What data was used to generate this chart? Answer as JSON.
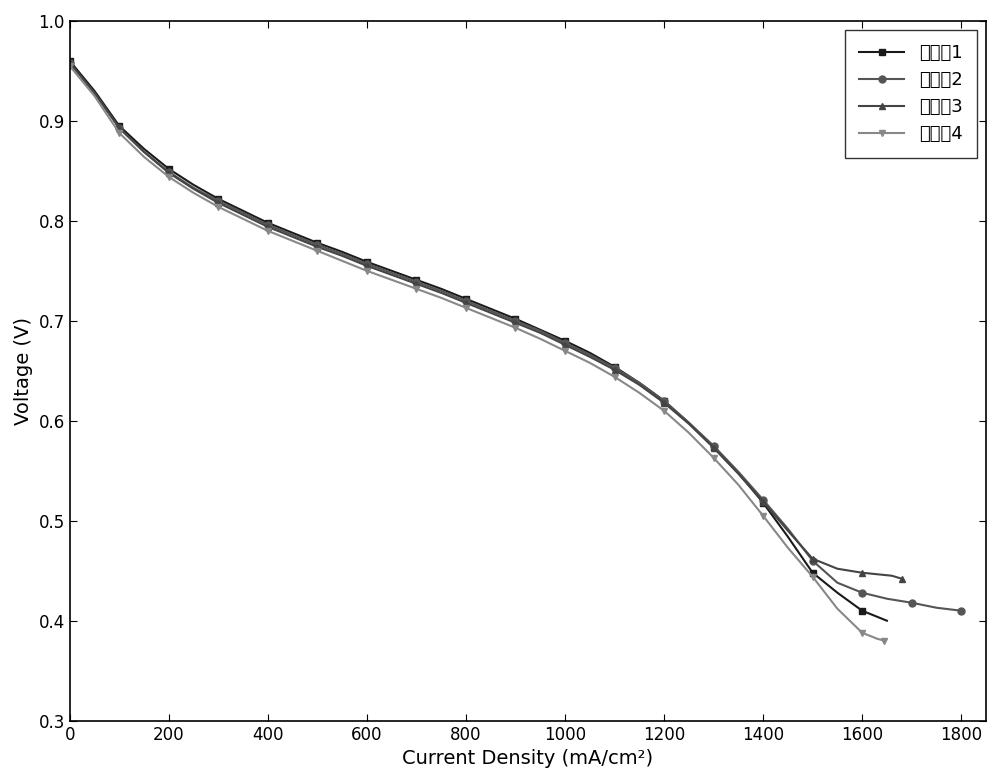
{
  "title": "",
  "xlabel": "Current Density (mA/cm²)",
  "ylabel": "Voltage (V)",
  "xlim": [
    0,
    1850
  ],
  "ylim": [
    0.3,
    1.0
  ],
  "xticks": [
    0,
    200,
    400,
    600,
    800,
    1000,
    1200,
    1400,
    1600,
    1800
  ],
  "yticks": [
    0.3,
    0.4,
    0.5,
    0.6,
    0.7,
    0.8,
    0.9,
    1.0
  ],
  "series": [
    {
      "label": "实施例1",
      "color": "#1a1a1a",
      "marker": "s",
      "markersize": 5,
      "linewidth": 1.5,
      "markevery": 2,
      "x": [
        0,
        50,
        100,
        150,
        200,
        250,
        300,
        350,
        400,
        450,
        500,
        550,
        600,
        650,
        700,
        750,
        800,
        850,
        900,
        950,
        1000,
        1050,
        1100,
        1150,
        1200,
        1250,
        1300,
        1350,
        1400,
        1450,
        1500,
        1550,
        1600,
        1650
      ],
      "y": [
        0.96,
        0.93,
        0.895,
        0.872,
        0.852,
        0.836,
        0.822,
        0.81,
        0.798,
        0.788,
        0.778,
        0.769,
        0.759,
        0.75,
        0.741,
        0.732,
        0.722,
        0.712,
        0.702,
        0.691,
        0.68,
        0.668,
        0.654,
        0.638,
        0.62,
        0.598,
        0.574,
        0.548,
        0.518,
        0.484,
        0.448,
        0.428,
        0.41,
        0.4
      ]
    },
    {
      "label": "实施例2",
      "color": "#555555",
      "marker": "o",
      "markersize": 5,
      "linewidth": 1.5,
      "markevery": 2,
      "x": [
        0,
        50,
        100,
        150,
        200,
        250,
        300,
        350,
        400,
        450,
        500,
        550,
        600,
        650,
        700,
        750,
        800,
        850,
        900,
        950,
        1000,
        1050,
        1100,
        1150,
        1200,
        1250,
        1300,
        1350,
        1400,
        1450,
        1500,
        1550,
        1600,
        1650,
        1700,
        1750,
        1800
      ],
      "y": [
        0.958,
        0.928,
        0.893,
        0.869,
        0.849,
        0.833,
        0.82,
        0.808,
        0.796,
        0.786,
        0.776,
        0.767,
        0.757,
        0.748,
        0.739,
        0.73,
        0.72,
        0.71,
        0.7,
        0.69,
        0.678,
        0.666,
        0.653,
        0.638,
        0.62,
        0.598,
        0.575,
        0.549,
        0.521,
        0.492,
        0.46,
        0.438,
        0.428,
        0.422,
        0.418,
        0.413,
        0.41
      ]
    },
    {
      "label": "实施例3",
      "color": "#444444",
      "marker": "^",
      "markersize": 5,
      "linewidth": 1.5,
      "markevery": 2,
      "x": [
        0,
        50,
        100,
        150,
        200,
        250,
        300,
        350,
        400,
        450,
        500,
        550,
        600,
        650,
        700,
        750,
        800,
        850,
        900,
        950,
        1000,
        1050,
        1100,
        1150,
        1200,
        1250,
        1300,
        1350,
        1400,
        1450,
        1500,
        1550,
        1600,
        1660,
        1680
      ],
      "y": [
        0.958,
        0.928,
        0.893,
        0.869,
        0.848,
        0.832,
        0.818,
        0.806,
        0.794,
        0.784,
        0.774,
        0.765,
        0.755,
        0.746,
        0.737,
        0.728,
        0.718,
        0.708,
        0.698,
        0.688,
        0.676,
        0.664,
        0.651,
        0.636,
        0.618,
        0.597,
        0.573,
        0.547,
        0.519,
        0.49,
        0.462,
        0.452,
        0.448,
        0.445,
        0.442
      ]
    },
    {
      "label": "实施例4",
      "color": "#888888",
      "marker": "v",
      "markersize": 5,
      "linewidth": 1.5,
      "markevery": 2,
      "x": [
        0,
        50,
        100,
        150,
        200,
        250,
        300,
        350,
        400,
        450,
        500,
        550,
        600,
        650,
        700,
        750,
        800,
        850,
        900,
        950,
        1000,
        1050,
        1100,
        1150,
        1200,
        1250,
        1300,
        1350,
        1400,
        1450,
        1500,
        1550,
        1600,
        1630,
        1645
      ],
      "y": [
        0.955,
        0.925,
        0.888,
        0.864,
        0.844,
        0.828,
        0.814,
        0.802,
        0.79,
        0.78,
        0.77,
        0.76,
        0.75,
        0.741,
        0.732,
        0.723,
        0.713,
        0.703,
        0.693,
        0.682,
        0.67,
        0.658,
        0.644,
        0.628,
        0.61,
        0.588,
        0.563,
        0.536,
        0.505,
        0.473,
        0.444,
        0.412,
        0.388,
        0.382,
        0.38
      ]
    }
  ],
  "legend_loc": "upper right",
  "axis_labelsize": 14,
  "tick_labelsize": 12,
  "legend_fontsize": 13
}
